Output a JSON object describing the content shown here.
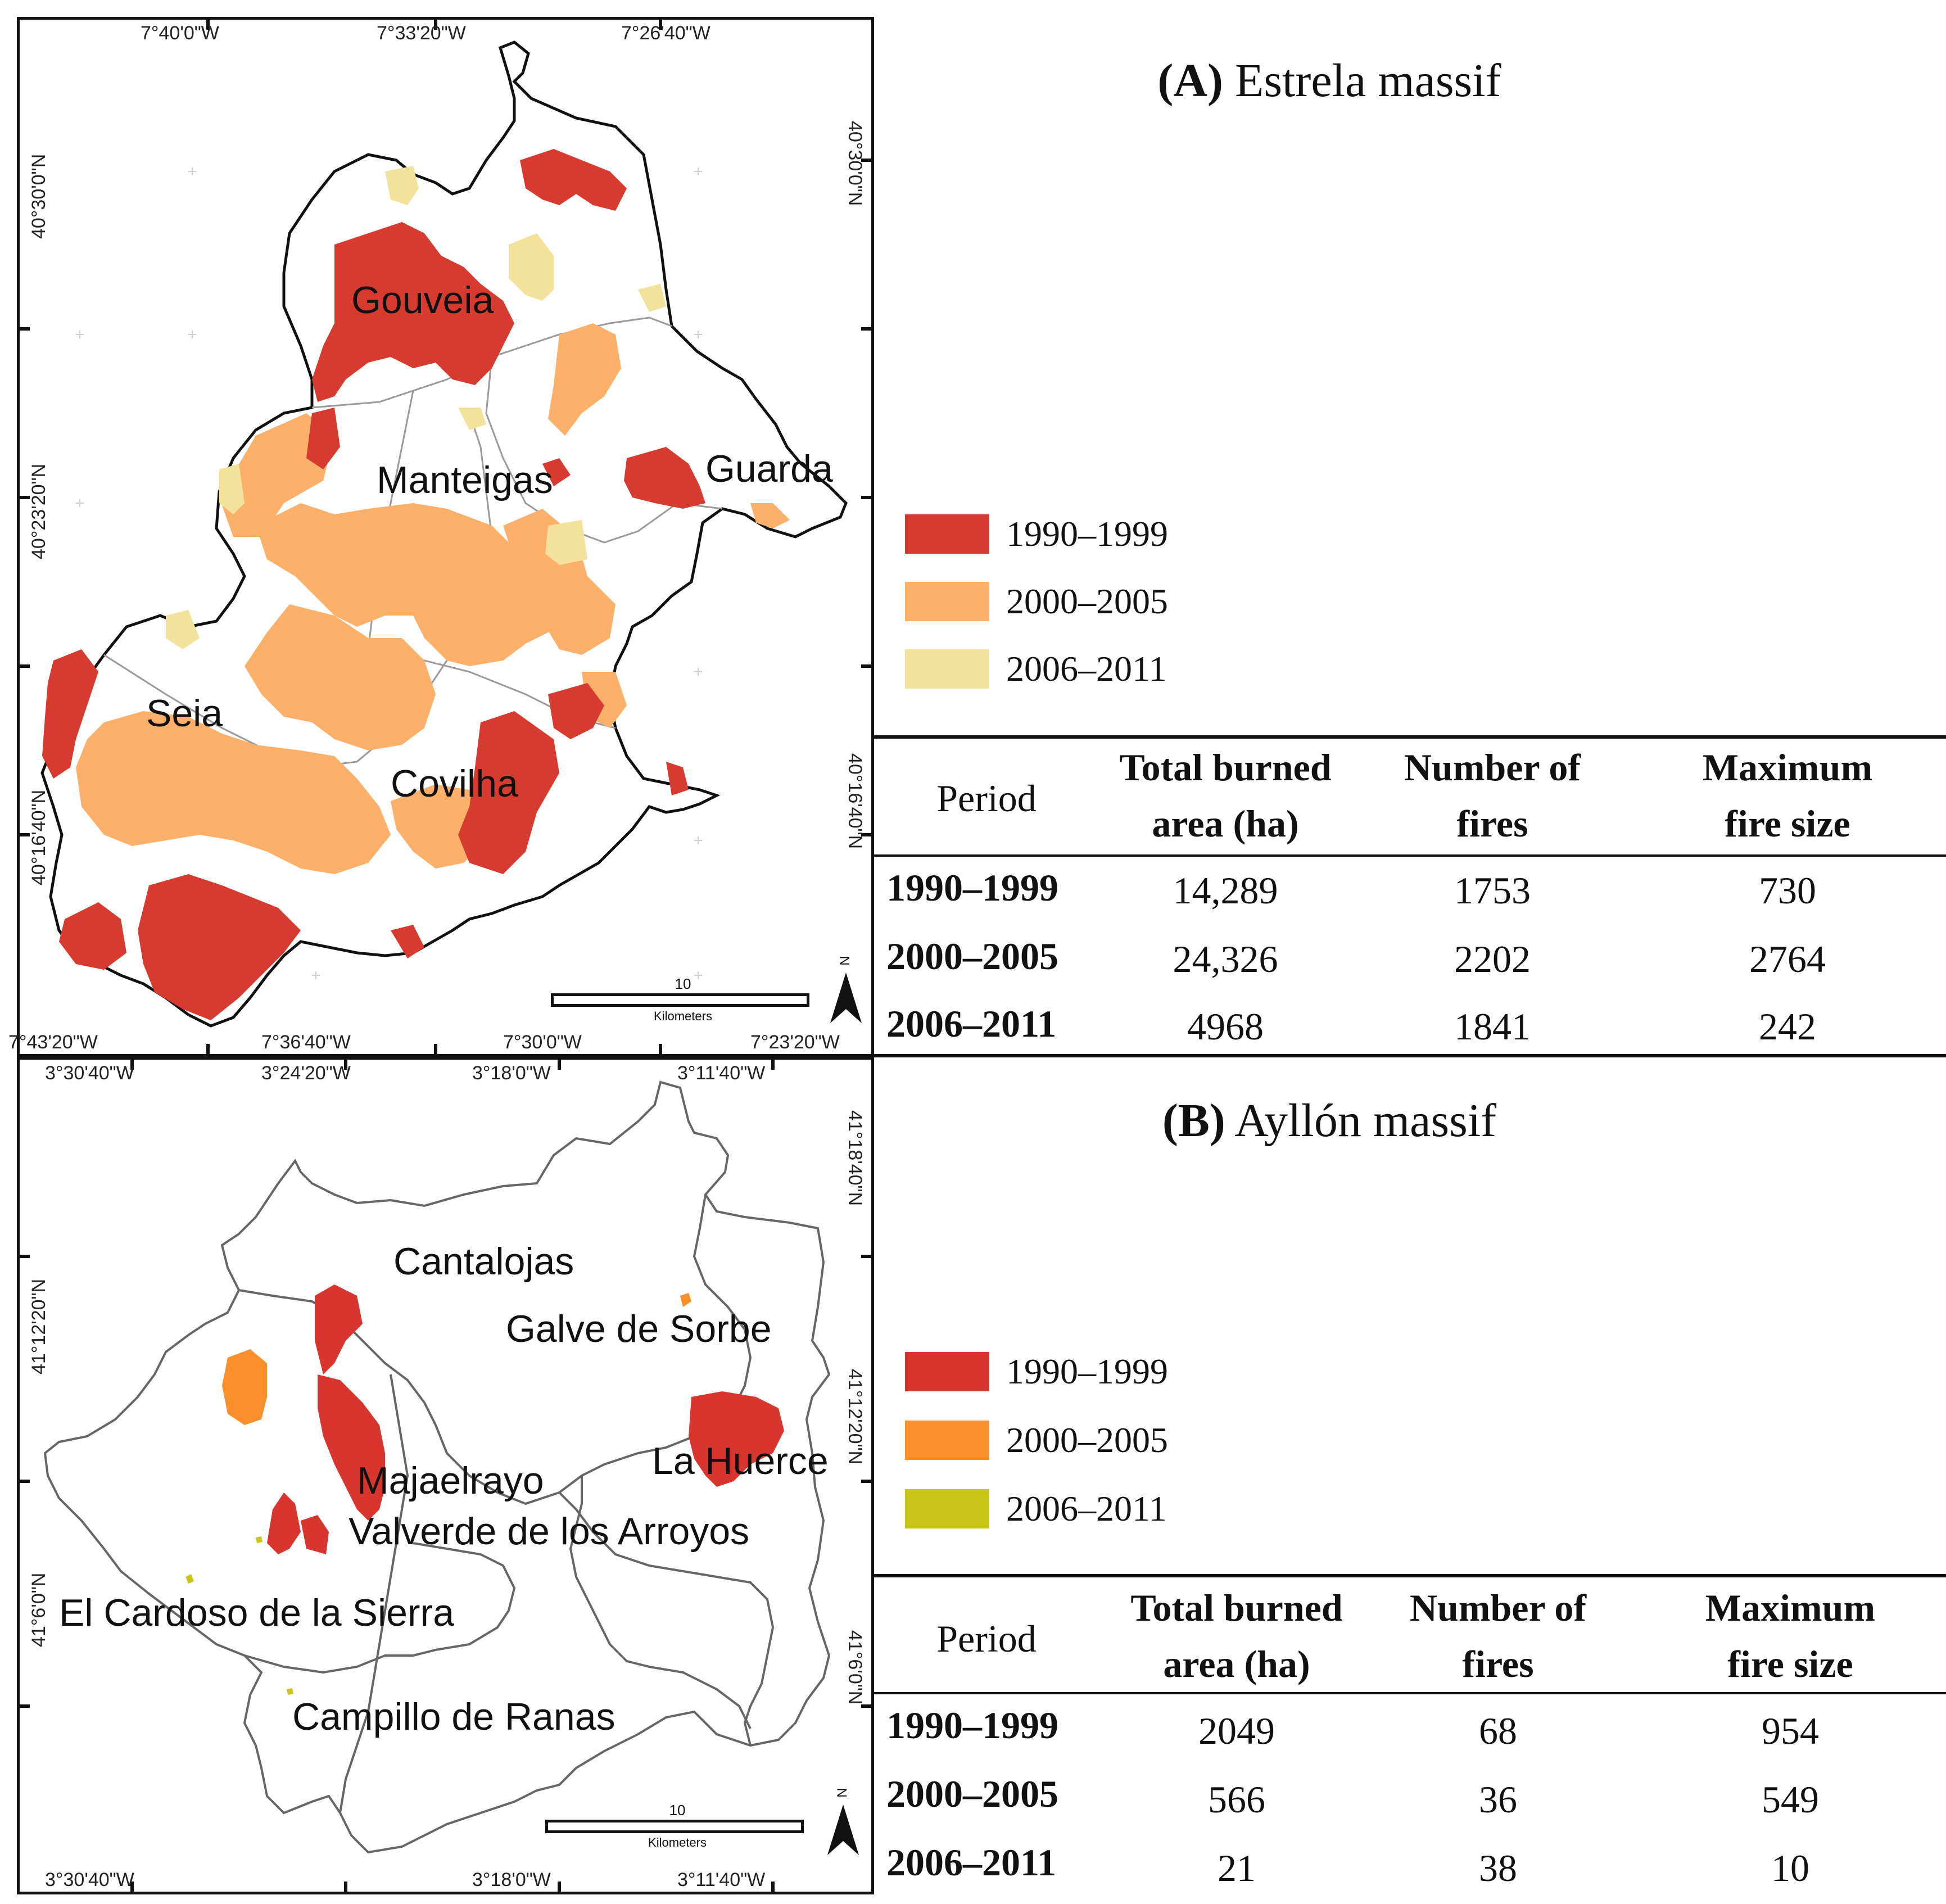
{
  "map_a": {
    "top_coords": [
      "7°40'0\"W",
      "7°33'20\"W",
      "7°26'40\"W"
    ],
    "bottom_coords": [
      "7°43'20\"W",
      "7°36'40\"W",
      "7°30'0\"W",
      "7°23'20\"W"
    ],
    "left_coords": [
      "40°30'0\"N",
      "40°23'20\"N",
      "40°16'40\"N"
    ],
    "right_coords": [
      "40°30'0\"N",
      "40°16'40\"N"
    ],
    "places": [
      "Gouveia",
      "Manteigas",
      "Guarda",
      "Seia",
      "Covilha"
    ],
    "scale_value": "10",
    "scale_unit": "Kilometers",
    "north_label": "N"
  },
  "map_b": {
    "top_coords": [
      "3°30'40\"W",
      "3°24'20\"W",
      "3°18'0\"W",
      "3°11'40\"W"
    ],
    "bottom_coords": [
      "3°30'40\"W",
      "3°18'0\"W",
      "3°11'40\"W"
    ],
    "left_coords": [
      "41°12'20\"N",
      "41°6'0\"N"
    ],
    "right_coords": [
      "41°18'40\"N",
      "41°12'20\"N",
      "41°6'0\"N"
    ],
    "places": [
      "Cantalojas",
      "Galve de Sorbe",
      "La Huerce",
      "Majaelrayo",
      "Valverde de los Arroyos",
      "El Cardoso de la Sierra",
      "Campillo de Ranas"
    ],
    "scale_value": "10",
    "scale_unit": "Kilometers",
    "north_label": "N"
  },
  "panel_a": {
    "title_bold": "(A)",
    "title_rest": " Estrela massif",
    "legend": [
      {
        "label": "1990–1999",
        "color": "#d73a2f"
      },
      {
        "label": "2000–2005",
        "color": "#fdb06a"
      },
      {
        "label": "2006–2011",
        "color": "#f3e29a"
      }
    ],
    "table": {
      "headers": [
        "Period",
        "Total burned area (ha)",
        "Number of fires",
        "Maximum fire size"
      ],
      "header_lines": [
        [
          "Period"
        ],
        [
          "Total burned",
          "area (ha)"
        ],
        [
          "Number of",
          "fires"
        ],
        [
          "Maximum",
          "fire size"
        ]
      ],
      "rows": [
        [
          "1990–1999",
          "14,289",
          "1753",
          "730"
        ],
        [
          "2000–2005",
          "24,326",
          "2202",
          "2764"
        ],
        [
          "2006–2011",
          "4968",
          "1841",
          "242"
        ]
      ]
    }
  },
  "panel_b": {
    "title_bold": "(B)",
    "title_rest": " Ayllón massif",
    "legend": [
      {
        "label": "1990–1999",
        "color": "#d7352e"
      },
      {
        "label": "2000–2005",
        "color": "#fb8f2a"
      },
      {
        "label": "2006–2011",
        "color": "#c9c61a"
      }
    ],
    "table": {
      "headers": [
        "Period",
        "Total burned area (ha)",
        "Number of fires",
        "Maximum fire size"
      ],
      "header_lines": [
        [
          "Period"
        ],
        [
          "Total burned",
          "area (ha)"
        ],
        [
          "Number of",
          "fires"
        ],
        [
          "Maximum",
          "fire size"
        ]
      ],
      "rows": [
        [
          "1990–1999",
          "2049",
          "68",
          "954"
        ],
        [
          "2000–2005",
          "566",
          "36",
          "549"
        ],
        [
          "2006–2011",
          "21",
          "38",
          "10"
        ]
      ]
    }
  }
}
